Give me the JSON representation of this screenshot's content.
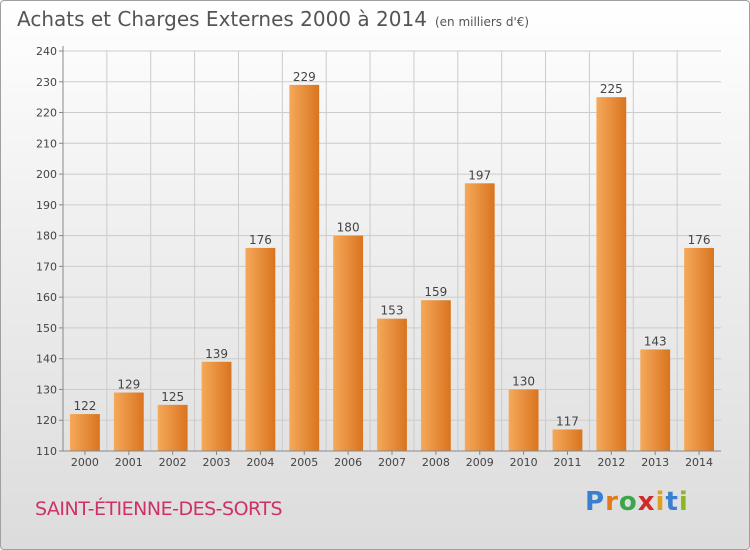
{
  "title": "Achats et Charges Externes 2000 à 2014",
  "subtitle": "(en milliers d'€)",
  "commune": "SAINT-ÉTIENNE-DES-SORTS",
  "logo": {
    "text": "Proxiti",
    "letters": [
      {
        "ch": "P",
        "color": "#3a7fd0"
      },
      {
        "ch": "r",
        "color": "#e07a1a"
      },
      {
        "ch": "o",
        "color": "#3aa84a"
      },
      {
        "ch": "x",
        "color": "#d02a2a"
      },
      {
        "ch": "i",
        "color": "#e0a01a"
      },
      {
        "ch": "t",
        "color": "#3a7fd0"
      },
      {
        "ch": "i",
        "color": "#8ab820"
      }
    ]
  },
  "colors": {
    "bar_light": "#f5a95a",
    "bar_dark": "#d9741f",
    "grid": "#cccccc",
    "axis_text": "#444444"
  },
  "chart_data": {
    "type": "bar",
    "categories": [
      "2000",
      "2001",
      "2002",
      "2003",
      "2004",
      "2005",
      "2006",
      "2007",
      "2008",
      "2009",
      "2010",
      "2011",
      "2012",
      "2013",
      "2014"
    ],
    "values": [
      122,
      129,
      125,
      139,
      176,
      229,
      180,
      153,
      159,
      197,
      130,
      117,
      225,
      143,
      176
    ],
    "ylim": [
      110,
      240
    ],
    "yticks": [
      110,
      120,
      130,
      140,
      150,
      160,
      170,
      180,
      190,
      200,
      210,
      220,
      230,
      240
    ],
    "grid": true,
    "data_labels": true
  }
}
